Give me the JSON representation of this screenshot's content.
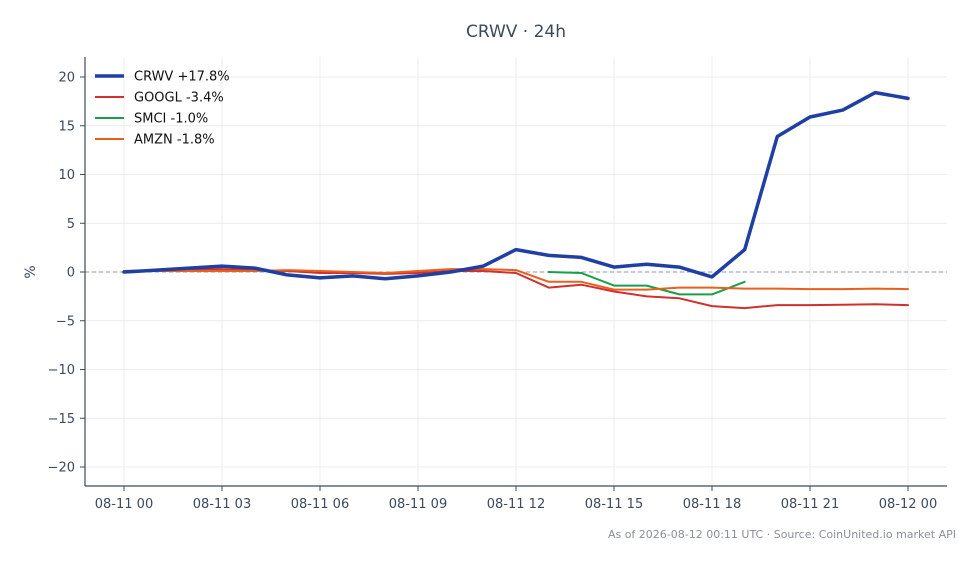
{
  "chart_data": {
    "type": "line",
    "title": "CRWV · 24h",
    "xlabel": "",
    "ylabel": "%",
    "ylim": [
      -22,
      22
    ],
    "yticks": [
      20,
      15,
      10,
      5,
      0,
      -5,
      -10,
      -15,
      -20
    ],
    "ytick_labels": [
      "20",
      "15",
      "10",
      "5",
      "0",
      "−5",
      "−10",
      "−15",
      "−20"
    ],
    "x_range": [
      "08-11 00:00",
      "08-12 00:00"
    ],
    "xticks": [
      "08-11 00",
      "08-11 03",
      "08-11 06",
      "08-11 09",
      "08-11 12",
      "08-11 15",
      "08-11 18",
      "08-11 21",
      "08-12 00"
    ],
    "grid": true,
    "legend_position": "top-left",
    "zero_line": true,
    "footer": "As of 2026-08-12 00:11 UTC · Source: CoinUnited.io market API",
    "series": [
      {
        "name": "CRWV +17.8%",
        "color": "#1f3fa3",
        "emphasis": true,
        "x": [
          0,
          1,
          2,
          3,
          4,
          5,
          6,
          7,
          8,
          9,
          10,
          11,
          12,
          13,
          14,
          15,
          16,
          17,
          18,
          19,
          20,
          21,
          22,
          23,
          24
        ],
        "y": [
          0.0,
          0.2,
          0.4,
          0.6,
          0.4,
          -0.3,
          -0.6,
          -0.4,
          -0.7,
          -0.4,
          0.0,
          0.6,
          2.3,
          1.7,
          1.5,
          0.5,
          0.8,
          0.5,
          -0.5,
          2.3,
          13.9,
          15.9,
          16.6,
          18.4,
          17.8
        ]
      },
      {
        "name": "GOOGL -3.4%",
        "color": "#d0312d",
        "x": [
          0,
          1,
          2,
          3,
          4,
          5,
          6,
          7,
          8,
          9,
          10,
          11,
          12,
          13,
          14,
          15,
          16,
          17,
          18,
          19,
          20,
          21,
          22,
          23,
          24
        ],
        "y": [
          0.1,
          0.2,
          0.3,
          0.3,
          0.2,
          0.1,
          -0.1,
          -0.1,
          -0.2,
          -0.1,
          0.1,
          0.1,
          -0.1,
          -1.6,
          -1.3,
          -2.0,
          -2.5,
          -2.7,
          -3.5,
          -3.7,
          -3.4,
          -3.4,
          -3.35,
          -3.3,
          -3.4
        ]
      },
      {
        "name": "SMCI -1.0%",
        "color": "#1a9e4a",
        "x": [
          13,
          14,
          15,
          16,
          17,
          18,
          19
        ],
        "y": [
          0.0,
          -0.1,
          -1.4,
          -1.4,
          -2.3,
          -2.3,
          -1.0
        ]
      },
      {
        "name": "AMZN -1.8%",
        "color": "#e8601c",
        "x": [
          0,
          1,
          2,
          3,
          4,
          5,
          6,
          7,
          8,
          9,
          10,
          11,
          12,
          13,
          14,
          15,
          16,
          17,
          18,
          19,
          20,
          21,
          22,
          23,
          24
        ],
        "y": [
          0.1,
          0.1,
          0.1,
          0.1,
          0.1,
          0.2,
          0.1,
          0.0,
          -0.1,
          0.1,
          0.3,
          0.3,
          0.2,
          -1.0,
          -1.0,
          -1.8,
          -1.8,
          -1.6,
          -1.6,
          -1.7,
          -1.7,
          -1.75,
          -1.75,
          -1.7,
          -1.75
        ]
      }
    ]
  }
}
